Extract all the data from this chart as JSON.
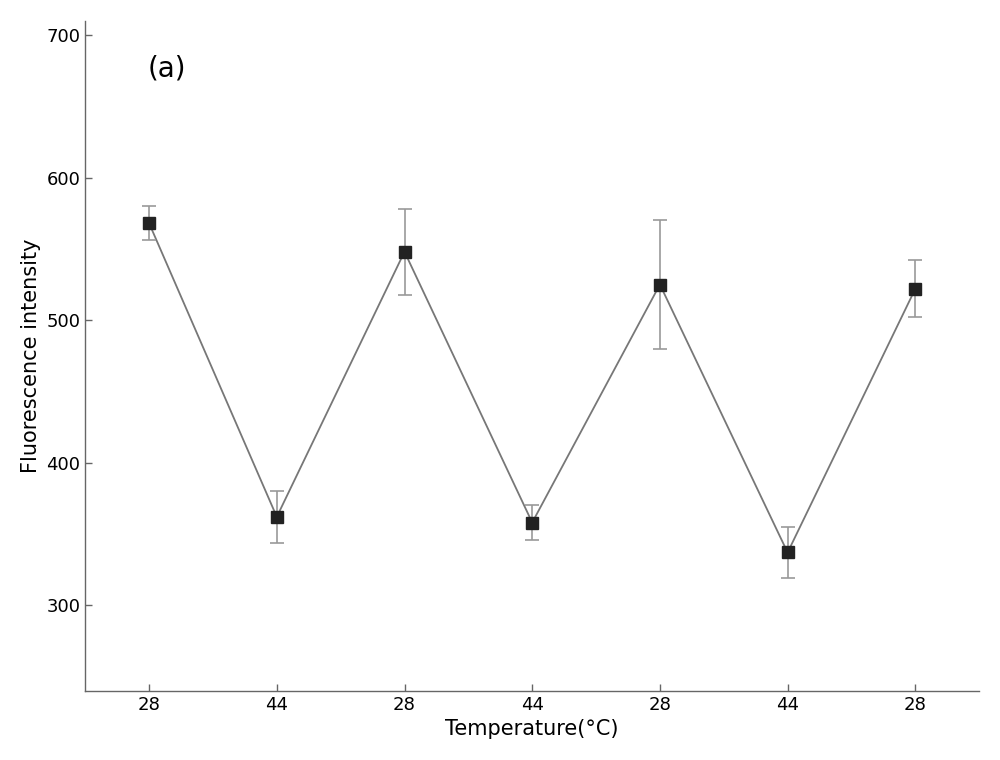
{
  "x_positions": [
    1,
    2,
    3,
    4,
    5,
    6,
    7
  ],
  "x_labels": [
    "28",
    "44",
    "28",
    "44",
    "28",
    "44",
    "28"
  ],
  "y_values": [
    568,
    362,
    548,
    358,
    525,
    337,
    522
  ],
  "y_errors": [
    12,
    18,
    30,
    12,
    45,
    18,
    20
  ],
  "ylim": [
    240,
    710
  ],
  "yticks": [
    300,
    400,
    500,
    600,
    700
  ],
  "xlabel": "Temperature(°C)",
  "ylabel": "Fluorescence intensity",
  "label_a": "(a)",
  "marker": "s",
  "marker_size": 9,
  "marker_color": "#222222",
  "line_color": "#777777",
  "line_width": 1.3,
  "error_color": "#999999",
  "background_color": "#ffffff",
  "axis_label_fontsize": 15,
  "tick_fontsize": 13,
  "annotation_fontsize": 20
}
